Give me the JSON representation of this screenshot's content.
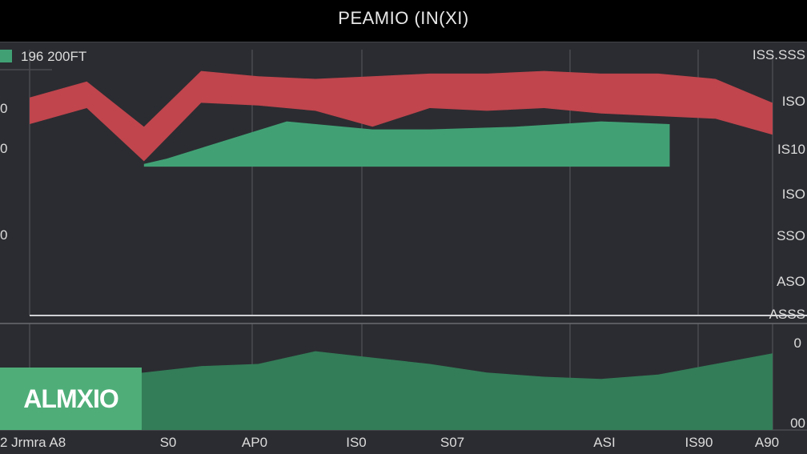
{
  "header": {
    "title": "PEAMIO (IN(XI)"
  },
  "badge": {
    "label": "ALMXIO"
  },
  "legend": {
    "label": "196 200FT"
  },
  "chart_data": [
    {
      "type": "area",
      "title": "PEAMIO (IN(XI)",
      "legend": [
        "196 200FT"
      ],
      "right_tick_labels": [
        "ISS.SSS",
        "ISO",
        "IS10",
        "ISO",
        "SSO",
        "ASO",
        "ASSS"
      ],
      "left_tick_labels": [
        "0",
        "0",
        "0"
      ],
      "x_tick_labels": [
        "2 Jrmra A8",
        "S0",
        "AP0",
        "IS0",
        "S07",
        "ASI",
        "IS90",
        "A90"
      ],
      "series": [
        {
          "color": "#c0454d",
          "x": [
            0,
            1,
            2,
            3,
            4,
            5,
            6,
            7,
            8,
            9,
            10,
            11,
            12,
            13
          ],
          "upper": [
            82,
            88,
            71,
            92,
            90,
            89,
            90,
            91,
            91,
            92,
            91,
            91,
            89,
            80
          ],
          "lower": [
            72,
            78,
            58,
            80,
            79,
            77,
            71,
            78,
            77,
            78,
            76,
            75,
            74,
            68
          ]
        },
        {
          "color": "#41a175",
          "x": [
            2.0,
            2.4,
            4.5,
            6.0,
            7.0,
            8.5,
            10.0,
            11.2
          ],
          "upper": [
            57,
            59,
            73,
            70,
            70,
            71,
            73,
            72
          ],
          "lower": [
            56,
            56,
            56,
            56,
            56,
            56,
            56,
            56
          ]
        },
        {
          "color": "#337d58",
          "x": [
            0,
            2,
            3,
            4,
            5,
            6,
            7,
            8,
            9,
            10,
            11,
            12,
            13
          ],
          "values": [
            22,
            27,
            30,
            31,
            37,
            34,
            31,
            27,
            25,
            24,
            26,
            31,
            36
          ]
        }
      ]
    }
  ]
}
